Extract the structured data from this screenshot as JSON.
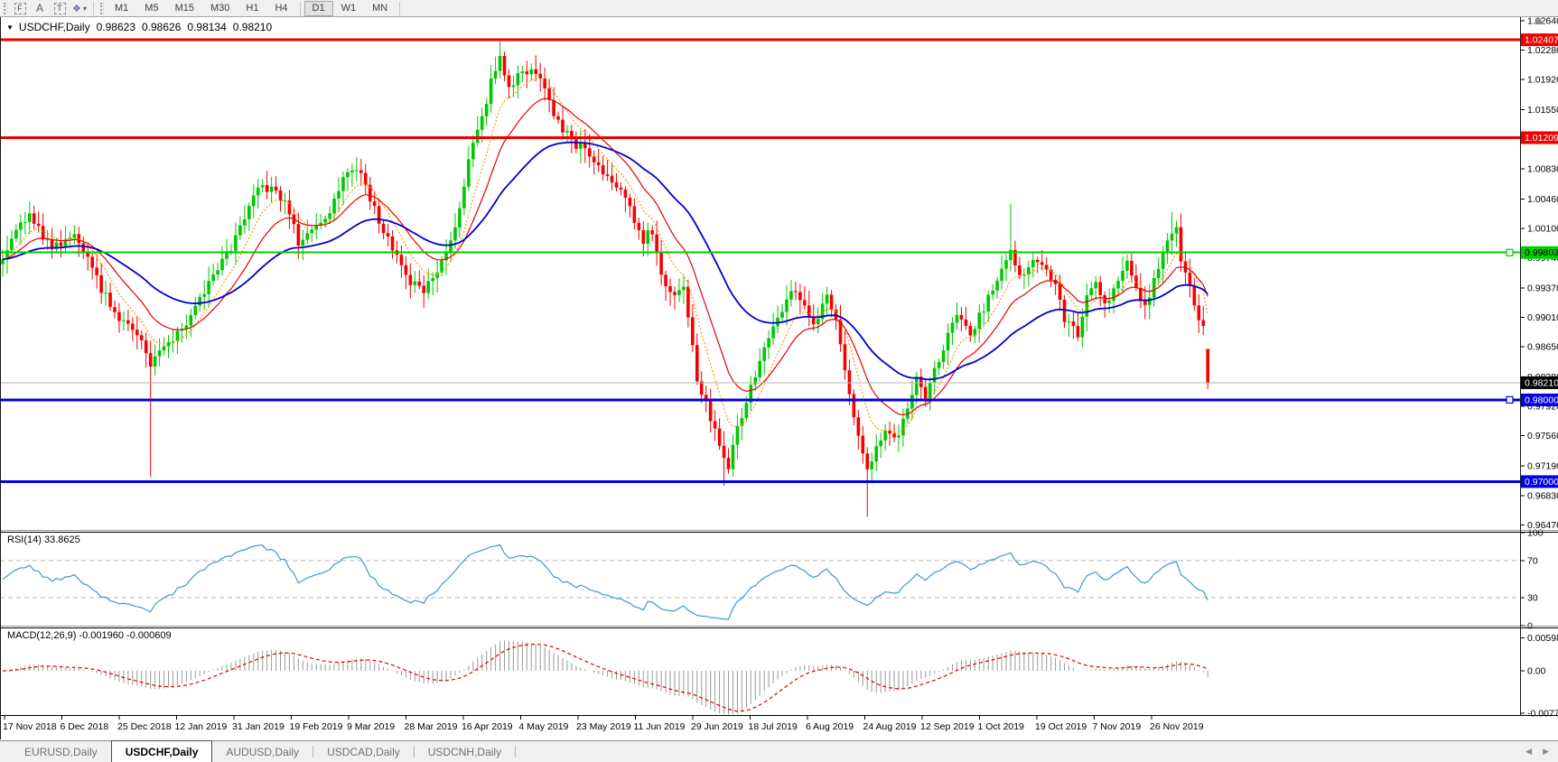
{
  "toolbar": {
    "tools": [
      {
        "name": "fibo",
        "glyph": "F"
      },
      {
        "name": "arrow",
        "glyph": "A"
      },
      {
        "name": "text",
        "glyph": "T"
      },
      {
        "name": "colors",
        "glyph": "❖",
        "caret": "▾"
      }
    ],
    "timeframes": [
      {
        "label": "M1"
      },
      {
        "label": "M5"
      },
      {
        "label": "M15"
      },
      {
        "label": "M30"
      },
      {
        "label": "H1"
      },
      {
        "label": "H4"
      },
      {
        "label": "D1",
        "active": true
      },
      {
        "label": "W1"
      },
      {
        "label": "MN"
      }
    ]
  },
  "chart": {
    "collapse_glyph": "▼",
    "symbol_period": "USDCHF,Daily",
    "ohlc": {
      "open": "0.98623",
      "high": "0.98626",
      "low": "0.98134",
      "close": "0.98210"
    },
    "price_axis_ticks": [
      "1.02640",
      "1.02280",
      "1.01920",
      "1.01550",
      "1.00830",
      "1.00460",
      "1.00100",
      "0.99740",
      "0.99370",
      "0.99010",
      "0.98650",
      "0.98280",
      "0.97920",
      "0.97560",
      "0.97190",
      "0.96830",
      "0.96470"
    ],
    "hlines": [
      {
        "price": 1.02407,
        "label": "1.02407",
        "color": "#ee0000",
        "text_color": "#ffffff",
        "width": 3,
        "handle": false
      },
      {
        "price": 1.01209,
        "label": "1.01209",
        "color": "#ee0000",
        "text_color": "#ffffff",
        "width": 3,
        "handle": false
      },
      {
        "price": 0.99803,
        "label": "0.99803",
        "color": "#00cf00",
        "text_color": "#000000",
        "width": 2,
        "handle": true
      },
      {
        "price": 0.98,
        "label": "0.98000",
        "color": "#0000e6",
        "text_color": "#ffffff",
        "width": 3,
        "handle": true
      },
      {
        "price": 0.97,
        "label": "0.97000",
        "color": "#0000e6",
        "text_color": "#ffffff",
        "width": 3,
        "handle": false
      }
    ],
    "current_price": {
      "value": 0.9821,
      "label": "0.98210",
      "line_color": "#b6b6b6",
      "label_bg": "#000000",
      "label_fg": "#ffffff"
    },
    "dates": [
      "17 Nov 2018",
      "6 Dec 2018",
      "25 Dec 2018",
      "12 Jan 2019",
      "31 Jan 2019",
      "19 Feb 2019",
      "9 Mar 2019",
      "28 Mar 2019",
      "16 Apr 2019",
      "4 May 2019",
      "23 May 2019",
      "11 Jun 2019",
      "29 Jun 2019",
      "18 Jul 2019",
      "6 Aug 2019",
      "24 Aug 2019",
      "12 Sep 2019",
      "1 Oct 2019",
      "19 Oct 2019",
      "7 Nov 2019",
      "26 Nov 2019"
    ]
  },
  "rsi": {
    "label": "RSI(14) 33.8625",
    "axis_labels": [
      {
        "value": 100,
        "text": "100"
      },
      {
        "value": 70,
        "text": "70"
      },
      {
        "value": 30,
        "text": "30"
      },
      {
        "value": 0,
        "text": "0"
      }
    ],
    "level_lines": [
      70,
      30
    ],
    "line_color": "#3c96dc"
  },
  "macd": {
    "label": "MACD(12,26,9) -0.001960 -0.000609",
    "axis_labels": [
      {
        "value": 0.005986,
        "text": "0.005986"
      },
      {
        "value": 0.0,
        "text": "0.00"
      },
      {
        "value": -0.007737,
        "text": "-0.007737"
      }
    ],
    "histogram_color": "#9a9a9a",
    "signal_color": "#e00000"
  },
  "tabs": [
    {
      "label": "EURUSD,Daily"
    },
    {
      "label": "USDCHF,Daily",
      "active": true
    },
    {
      "label": "AUDUSD,Daily"
    },
    {
      "label": "USDCAD,Daily"
    },
    {
      "label": "USDCNH,Daily"
    }
  ],
  "tab_scroll": {
    "left": "◀",
    "right": "▶"
  },
  "chart_data": {
    "type": "candlestick",
    "title": "USDCHF,Daily",
    "symbol": "USDCHF",
    "period": "Daily",
    "visible_range": {
      "start": "17 Nov 2018",
      "end": "6 Dec 2019"
    },
    "y_axis": {
      "min": 0.9647,
      "max": 1.0264
    },
    "last_bar": {
      "open": 0.98623,
      "high": 0.98626,
      "low": 0.98134,
      "close": 0.9821
    },
    "current_price": 0.9821,
    "horizontal_levels": [
      {
        "price": 1.02407,
        "color": "red"
      },
      {
        "price": 1.01209,
        "color": "red"
      },
      {
        "price": 0.99803,
        "color": "green"
      },
      {
        "price": 0.98,
        "color": "blue"
      },
      {
        "price": 0.97,
        "color": "blue"
      }
    ],
    "num_candles": 270,
    "price_waypoints": [
      [
        0,
        0.9975
      ],
      [
        3,
        1.0008
      ],
      [
        6,
        1.0028
      ],
      [
        11,
        0.9985
      ],
      [
        16,
        1.0003
      ],
      [
        22,
        0.9937
      ],
      [
        26,
        0.9901
      ],
      [
        30,
        0.9878
      ],
      [
        33,
        0.9846
      ],
      [
        37,
        0.9871
      ],
      [
        41,
        0.989
      ],
      [
        44,
        0.9925
      ],
      [
        48,
        0.9962
      ],
      [
        51,
        0.9984
      ],
      [
        55,
        1.004
      ],
      [
        58,
        1.0062
      ],
      [
        63,
        1.0045
      ],
      [
        66,
        0.9992
      ],
      [
        69,
        1.0005
      ],
      [
        73,
        1.0028
      ],
      [
        77,
        1.0083
      ],
      [
        80,
        1.0077
      ],
      [
        83,
        1.0033
      ],
      [
        88,
        0.9973
      ],
      [
        91,
        0.9943
      ],
      [
        94,
        0.9931
      ],
      [
        98,
        0.9967
      ],
      [
        101,
        1.001
      ],
      [
        104,
        1.0094
      ],
      [
        107,
        1.0143
      ],
      [
        109,
        1.0188
      ],
      [
        111,
        1.0216
      ],
      [
        113,
        1.0181
      ],
      [
        115,
        1.0198
      ],
      [
        118,
        1.0204
      ],
      [
        121,
        1.0187
      ],
      [
        123,
        1.0143
      ],
      [
        125,
        1.0132
      ],
      [
        128,
        1.0107
      ],
      [
        130,
        1.0113
      ],
      [
        133,
        1.0083
      ],
      [
        136,
        1.0071
      ],
      [
        140,
        1.0033
      ],
      [
        143,
        0.9996
      ],
      [
        145,
        1.0008
      ],
      [
        147,
        0.9948
      ],
      [
        150,
        0.9925
      ],
      [
        152,
        0.9937
      ],
      [
        153,
        0.9901
      ],
      [
        155,
        0.9828
      ],
      [
        158,
        0.9779
      ],
      [
        160,
        0.9742
      ],
      [
        162,
        0.9718
      ],
      [
        164,
        0.9767
      ],
      [
        167,
        0.9816
      ],
      [
        171,
        0.9877
      ],
      [
        174,
        0.9913
      ],
      [
        177,
        0.9937
      ],
      [
        181,
        0.9889
      ],
      [
        184,
        0.9925
      ],
      [
        186,
        0.9901
      ],
      [
        189,
        0.9803
      ],
      [
        191,
        0.9754
      ],
      [
        193,
        0.9718
      ],
      [
        195,
        0.9742
      ],
      [
        197,
        0.9767
      ],
      [
        200,
        0.9754
      ],
      [
        202,
        0.9791
      ],
      [
        204,
        0.9828
      ],
      [
        206,
        0.9803
      ],
      [
        210,
        0.9864
      ],
      [
        213,
        0.9901
      ],
      [
        216,
        0.9877
      ],
      [
        220,
        0.9925
      ],
      [
        223,
        0.9962
      ],
      [
        225,
        0.998
      ],
      [
        227,
        0.9948
      ],
      [
        231,
        0.9973
      ],
      [
        233,
        0.9962
      ],
      [
        235,
        0.9937
      ],
      [
        237,
        0.9901
      ],
      [
        240,
        0.9877
      ],
      [
        242,
        0.9925
      ],
      [
        244,
        0.9948
      ],
      [
        246,
        0.9913
      ],
      [
        249,
        0.9948
      ],
      [
        251,
        0.9973
      ],
      [
        253,
        0.9937
      ],
      [
        255,
        0.9913
      ],
      [
        258,
        0.9962
      ],
      [
        260,
        0.9996
      ],
      [
        262,
        1.0008
      ],
      [
        263,
        0.9973
      ],
      [
        265,
        0.9937
      ],
      [
        266,
        0.9913
      ],
      [
        268,
        0.9889
      ],
      [
        269,
        0.9821
      ]
    ],
    "wick_lows": [
      [
        33,
        0.9706
      ],
      [
        161,
        0.9695
      ],
      [
        193,
        0.9657
      ],
      [
        269,
        0.98134
      ]
    ],
    "wick_highs": [
      [
        111,
        1.0235
      ],
      [
        225,
        1.004
      ],
      [
        261,
        1.003
      ]
    ],
    "candle_up_color": "#00c800",
    "candle_down_color": "#f40000",
    "moving_averages": [
      {
        "period": 8,
        "color": "#ff9900",
        "style": "dotted"
      },
      {
        "period": 16,
        "color": "#e60000",
        "style": "solid"
      },
      {
        "period": 40,
        "color": "#0000cc",
        "style": "solid"
      }
    ],
    "indicators": [
      {
        "name": "RSI",
        "period": 14,
        "value": 33.8625,
        "levels": [
          30,
          70
        ],
        "range": [
          0,
          100
        ]
      },
      {
        "name": "MACD",
        "params": [
          12,
          26,
          9
        ],
        "main": -0.00196,
        "signal": -0.000609,
        "axis_max": 0.005986,
        "axis_min": -0.007737
      }
    ]
  }
}
